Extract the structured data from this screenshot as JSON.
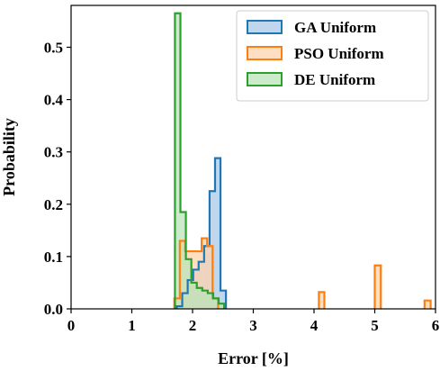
{
  "chart_data": {
    "type": "histogram",
    "title": "",
    "xlabel": "Error [%]",
    "ylabel": "Probability",
    "xlim": [
      0,
      6
    ],
    "ylim": [
      0,
      0.58
    ],
    "xticks": [
      "0",
      "1",
      "2",
      "3",
      "4",
      "5",
      "6"
    ],
    "yticks": [
      "0.0",
      "0.1",
      "0.2",
      "0.3",
      "0.4",
      "0.5"
    ],
    "grid": false,
    "legend_position": "top-right",
    "series": [
      {
        "name": "GA Uniform",
        "edge_color": "#1f77b4",
        "fill_color": "#a9c8e6",
        "bins": [
          {
            "x0": 1.74,
            "x1": 1.83,
            "y": 0.005
          },
          {
            "x0": 1.83,
            "x1": 1.92,
            "y": 0.03
          },
          {
            "x0": 1.92,
            "x1": 2.01,
            "y": 0.055
          },
          {
            "x0": 2.01,
            "x1": 2.1,
            "y": 0.075
          },
          {
            "x0": 2.1,
            "x1": 2.19,
            "y": 0.09
          },
          {
            "x0": 2.19,
            "x1": 2.28,
            "y": 0.12
          },
          {
            "x0": 2.28,
            "x1": 2.37,
            "y": 0.225
          },
          {
            "x0": 2.37,
            "x1": 2.46,
            "y": 0.288
          },
          {
            "x0": 2.46,
            "x1": 2.55,
            "y": 0.035
          }
        ]
      },
      {
        "name": "PSO Uniform",
        "edge_color": "#ff7f0e",
        "fill_color": "#ffd3ae",
        "bins": [
          {
            "x0": 1.7,
            "x1": 1.79,
            "y": 0.02
          },
          {
            "x0": 1.79,
            "x1": 1.88,
            "y": 0.13
          },
          {
            "x0": 1.88,
            "x1": 1.97,
            "y": 0.11
          },
          {
            "x0": 1.97,
            "x1": 2.06,
            "y": 0.11
          },
          {
            "x0": 2.06,
            "x1": 2.15,
            "y": 0.11
          },
          {
            "x0": 2.15,
            "x1": 2.24,
            "y": 0.135
          },
          {
            "x0": 2.24,
            "x1": 2.33,
            "y": 0.12
          },
          {
            "x0": 2.33,
            "x1": 2.42,
            "y": 0.02
          },
          {
            "x0": 4.08,
            "x1": 4.17,
            "y": 0.032
          },
          {
            "x0": 5.0,
            "x1": 5.1,
            "y": 0.083
          },
          {
            "x0": 5.82,
            "x1": 5.92,
            "y": 0.016
          }
        ]
      },
      {
        "name": "DE Uniform",
        "edge_color": "#2ca02c",
        "fill_color": "#b9e4b9",
        "bins": [
          {
            "x0": 1.71,
            "x1": 1.8,
            "y": 0.565
          },
          {
            "x0": 1.8,
            "x1": 1.89,
            "y": 0.185
          },
          {
            "x0": 1.89,
            "x1": 1.98,
            "y": 0.095
          },
          {
            "x0": 1.98,
            "x1": 2.07,
            "y": 0.05
          },
          {
            "x0": 2.07,
            "x1": 2.16,
            "y": 0.04
          },
          {
            "x0": 2.16,
            "x1": 2.25,
            "y": 0.035
          },
          {
            "x0": 2.25,
            "x1": 2.34,
            "y": 0.03
          },
          {
            "x0": 2.34,
            "x1": 2.43,
            "y": 0.02
          },
          {
            "x0": 2.43,
            "x1": 2.52,
            "y": 0.01
          }
        ]
      }
    ]
  }
}
